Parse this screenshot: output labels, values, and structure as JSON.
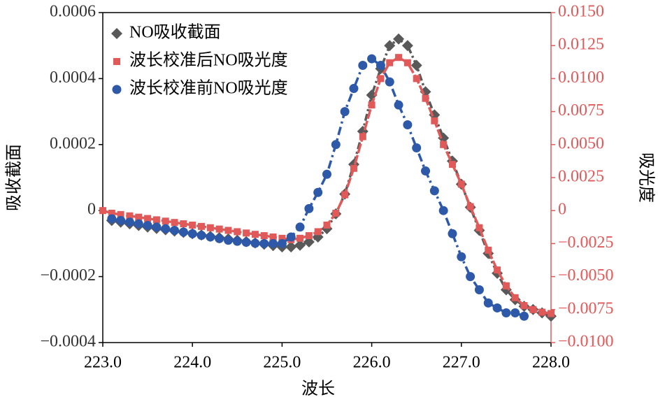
{
  "chart_data": {
    "type": "line",
    "x_label": "波长",
    "y_label": "吸收截面",
    "y2_label": "吸光度",
    "x": [
      223.0,
      223.1,
      223.2,
      223.3,
      223.4,
      223.5,
      223.6,
      223.7,
      223.8,
      223.9,
      224.0,
      224.1,
      224.2,
      224.3,
      224.4,
      224.5,
      224.6,
      224.7,
      224.8,
      224.9,
      225.0,
      225.1,
      225.2,
      225.3,
      225.4,
      225.5,
      225.6,
      225.7,
      225.8,
      225.9,
      226.0,
      226.1,
      226.2,
      226.3,
      226.4,
      226.5,
      226.6,
      226.7,
      226.8,
      226.9,
      227.0,
      227.1,
      227.2,
      227.3,
      227.4,
      227.5,
      227.6,
      227.7,
      227.8,
      227.9,
      228.0
    ],
    "series": [
      {
        "name": "NO吸收截面",
        "color": "#595959",
        "marker": "diamond",
        "axis": "y",
        "values": [
          null,
          -3e-05,
          -3.5e-05,
          -4e-05,
          -4.5e-05,
          -5e-05,
          -5.4e-05,
          -5.8e-05,
          -6.2e-05,
          -6.6e-05,
          -7e-05,
          -7.4e-05,
          -7.8e-05,
          -8.2e-05,
          -8.6e-05,
          -9e-05,
          -9.4e-05,
          -9.8e-05,
          -0.000102,
          -0.000106,
          -0.00011,
          -0.00011,
          -0.000105,
          -9.5e-05,
          -8e-05,
          -5.5e-05,
          -1e-05,
          5e-05,
          0.00014,
          0.00024,
          0.00035,
          0.00043,
          0.0005,
          0.00052,
          0.0005,
          0.00044,
          0.00036,
          0.00029,
          0.00022,
          0.00015,
          8e-05,
          1e-05,
          -6e-05,
          -0.00013,
          -0.00019,
          -0.00024,
          -0.00027,
          -0.00029,
          -0.0003,
          -0.00031,
          -0.00032
        ]
      },
      {
        "name": "波长校准后NO吸光度",
        "color": "#e05a5a",
        "marker": "square",
        "axis": "y2",
        "values": [
          0,
          -0.0002,
          -0.0003,
          -0.0004,
          -0.0005,
          -0.0006,
          -0.0007,
          -0.0008,
          -0.0009,
          -0.001,
          -0.0011,
          -0.0012,
          -0.0013,
          -0.0014,
          -0.0015,
          -0.0016,
          -0.0017,
          -0.0018,
          -0.0019,
          -0.002,
          -0.0021,
          -0.0022,
          -0.0021,
          -0.0019,
          -0.0016,
          -0.0011,
          -0.0002,
          0.0012,
          0.0032,
          0.0056,
          0.008,
          0.01,
          0.0112,
          0.0116,
          0.0112,
          0.01,
          0.0085,
          0.0068,
          0.005,
          0.0035,
          0.002,
          0.0003,
          -0.0013,
          -0.003,
          -0.0045,
          -0.0057,
          -0.0066,
          -0.0072,
          -0.0075,
          -0.0077,
          -0.0078
        ]
      },
      {
        "name": "波长校准前NO吸光度",
        "color": "#2e59a8",
        "marker": "circle",
        "axis": "y",
        "values": [
          null,
          -2.5e-05,
          -3e-05,
          -3.5e-05,
          -4e-05,
          -4.5e-05,
          -5e-05,
          -5.5e-05,
          -6e-05,
          -6.5e-05,
          -7e-05,
          -7.5e-05,
          -8e-05,
          -8.5e-05,
          -9e-05,
          -9.3e-05,
          -9.6e-05,
          -9.9e-05,
          -0.0001,
          -0.0001,
          -0.0001,
          -8e-05,
          -5e-05,
          6e-06,
          5.5e-05,
          0.00011,
          0.0002,
          0.0003,
          0.00037,
          0.00044,
          0.00046,
          0.00044,
          0.00039,
          0.00032,
          0.00026,
          0.00019,
          0.00012,
          6e-05,
          0,
          -7e-05,
          -0.00014,
          -0.0002,
          -0.00024,
          -0.00028,
          -0.000295,
          -0.00031,
          -0.00031,
          -0.00032,
          null,
          null,
          null
        ]
      }
    ],
    "xlim": [
      223.0,
      228.0
    ],
    "xticks": [
      {
        "value": 223,
        "label": "223.0"
      },
      {
        "value": 224,
        "label": "224.0"
      },
      {
        "value": 225,
        "label": "225.0"
      },
      {
        "value": 226,
        "label": "226.0"
      },
      {
        "value": 227,
        "label": "227.0"
      },
      {
        "value": 228,
        "label": "228.0"
      }
    ],
    "ylim": [
      -0.0004,
      0.0006
    ],
    "yticks": [
      {
        "value": -0.0004,
        "label": "−0.0004"
      },
      {
        "value": -0.0002,
        "label": "−0.0002"
      },
      0,
      0.0002,
      0.0004,
      0.0006
    ],
    "y2lim": [
      -0.01,
      0.015
    ],
    "y2ticks": [
      {
        "value": -0.01,
        "label": "−0.0100"
      },
      {
        "value": -0.0075,
        "label": "−0.0075"
      },
      {
        "value": -0.005,
        "label": "−0.0050"
      },
      {
        "value": -0.0025,
        "label": "−0.0025"
      },
      0,
      {
        "value": 0.0025,
        "label": "0.0025"
      },
      {
        "value": 0.005,
        "label": "0.0050"
      },
      {
        "value": 0.0075,
        "label": "0.0075"
      },
      {
        "value": 0.01,
        "label": "0.0100"
      },
      {
        "value": 0.0125,
        "label": "0.0125"
      },
      {
        "value": 0.015,
        "label": "0.0150"
      }
    ],
    "y2_color": "#e05a5a",
    "legend": "upper left"
  }
}
